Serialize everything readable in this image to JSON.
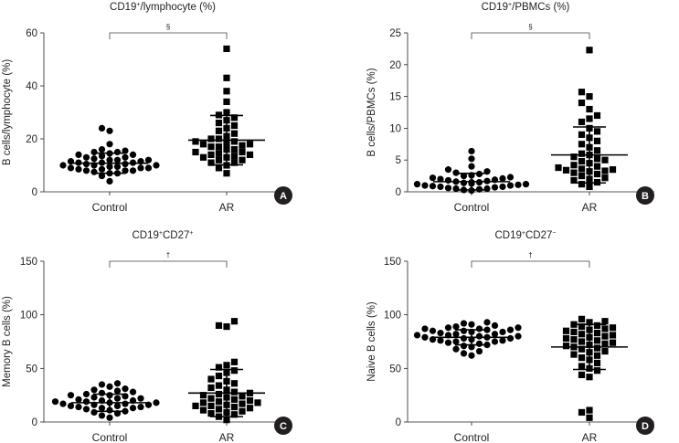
{
  "chart_data": [
    {
      "type": "scatter",
      "panel_label": "A",
      "title": "CD19+/lymphocyte (%)",
      "title_parts": {
        "base": "CD19",
        "sup": "+",
        "rest": "/lymphocyte (%)"
      },
      "ylabel": "B cells/lymphocyte (%)",
      "xlabel": "",
      "ylim": [
        0,
        60
      ],
      "yticks": [
        0,
        20,
        40,
        60
      ],
      "categories": [
        "Control",
        "AR"
      ],
      "significance": "§",
      "series": [
        {
          "name": "Control",
          "marker": "circle",
          "mean": 10.8,
          "sd": 3.8,
          "values": [
            4,
            6,
            7,
            7,
            7.5,
            8,
            8,
            8,
            8.5,
            8.5,
            9,
            9,
            9,
            9.5,
            9.5,
            10,
            10,
            10,
            10.5,
            10.5,
            11,
            11,
            11,
            11.5,
            11.5,
            12,
            12,
            12,
            12.5,
            13,
            13,
            13.5,
            14,
            14,
            14.5,
            15,
            15,
            15.5,
            16,
            18,
            23,
            24
          ]
        },
        {
          "name": "AR",
          "marker": "square",
          "mean": 19.5,
          "sd": 9.3,
          "values": [
            7,
            9,
            10,
            11,
            11,
            12,
            12,
            13,
            13,
            13.5,
            14,
            14,
            14.5,
            15,
            15,
            16,
            16,
            17,
            17,
            17.5,
            18,
            18,
            18.5,
            19,
            19,
            20,
            20,
            21,
            22,
            23,
            24,
            25,
            26,
            27,
            28,
            29,
            30,
            34,
            38,
            43,
            54
          ]
        }
      ]
    },
    {
      "type": "scatter",
      "panel_label": "B",
      "title": "CD19+/PBMCs (%)",
      "title_parts": {
        "base": "CD19",
        "sup": "+",
        "rest": "/PBMCs (%)"
      },
      "ylabel": "B cells/PBMCs (%)",
      "xlabel": "",
      "ylim": [
        0,
        25
      ],
      "yticks": [
        0,
        5,
        10,
        15,
        20,
        25
      ],
      "categories": [
        "Control",
        "AR"
      ],
      "significance": "§",
      "series": [
        {
          "name": "Control",
          "marker": "circle",
          "mean": 1.6,
          "sd": 1.3,
          "values": [
            0.2,
            0.3,
            0.4,
            0.5,
            0.5,
            0.6,
            0.7,
            0.8,
            0.8,
            0.9,
            1,
            1,
            1.1,
            1.2,
            1.2,
            1.3,
            1.4,
            1.5,
            1.5,
            1.6,
            1.7,
            1.8,
            1.9,
            2,
            2.1,
            2.2,
            2.3,
            2.5,
            2.6,
            2.8,
            3,
            3.2,
            3.5,
            4,
            5.2,
            6.4
          ]
        },
        {
          "name": "AR",
          "marker": "square",
          "mean": 5.8,
          "sd": 4.4,
          "values": [
            0.8,
            1.2,
            1.5,
            1.8,
            2,
            2.2,
            2.5,
            2.8,
            3,
            3.2,
            3.3,
            3.4,
            3.5,
            3.6,
            3.8,
            4,
            4.2,
            4.5,
            4.8,
            5,
            5.2,
            5.5,
            5.8,
            6,
            6.5,
            7,
            7.5,
            8,
            8.5,
            9,
            9.5,
            10,
            11,
            11.5,
            12,
            13,
            14,
            15,
            15.7,
            22.3
          ]
        }
      ]
    },
    {
      "type": "scatter",
      "panel_label": "C",
      "title": "CD19+CD27+",
      "title_parts": {
        "base": "CD19",
        "sup": "+",
        "rest": "CD27",
        "sup2": "+"
      },
      "ylabel": "Memory B cells (%)",
      "xlabel": "",
      "ylim": [
        0,
        150
      ],
      "yticks": [
        0,
        50,
        100,
        150
      ],
      "categories": [
        "Control",
        "AR"
      ],
      "significance": "†",
      "series": [
        {
          "name": "Control",
          "marker": "circle",
          "mean": 18,
          "sd": 8,
          "values": [
            4,
            6,
            8,
            9,
            10,
            11,
            12,
            13,
            13,
            14,
            14,
            15,
            15,
            16,
            16,
            17,
            17,
            18,
            18,
            19,
            19,
            20,
            20,
            21,
            22,
            22,
            23,
            24,
            25,
            25,
            26,
            27,
            28,
            29,
            30,
            31,
            33,
            35,
            36
          ]
        },
        {
          "name": "AR",
          "marker": "square",
          "mean": 27,
          "sd": 22,
          "values": [
            2,
            5,
            7,
            8,
            9,
            10,
            11,
            12,
            13,
            14,
            15,
            15,
            16,
            17,
            18,
            18,
            19,
            20,
            21,
            22,
            23,
            24,
            25,
            26,
            27,
            28,
            30,
            32,
            34,
            36,
            38,
            40,
            43,
            46,
            48,
            51,
            53,
            56,
            89,
            90,
            94
          ]
        }
      ]
    },
    {
      "type": "scatter",
      "panel_label": "D",
      "title": "CD19+CD27−",
      "title_parts": {
        "base": "CD19",
        "sup": "+",
        "rest": "CD27",
        "sup2": "−"
      },
      "ylabel": "Naive B cells (%)",
      "xlabel": "",
      "ylim": [
        0,
        150
      ],
      "yticks": [
        0,
        50,
        100,
        150
      ],
      "categories": [
        "Control",
        "AR"
      ],
      "significance": "†",
      "series": [
        {
          "name": "Control",
          "marker": "circle",
          "mean": 79,
          "sd": 7,
          "values": [
            62,
            64,
            66,
            68,
            70,
            71,
            72,
            73,
            74,
            75,
            75,
            76,
            76,
            77,
            77,
            78,
            78,
            79,
            79,
            80,
            80,
            81,
            81,
            82,
            82,
            83,
            84,
            84,
            85,
            85,
            86,
            86,
            87,
            87,
            88,
            88,
            89,
            90,
            91,
            92,
            93
          ]
        },
        {
          "name": "AR",
          "marker": "square",
          "mean": 70,
          "sd": 21,
          "values": [
            4,
            9,
            11,
            42,
            44,
            48,
            50,
            52,
            55,
            58,
            60,
            62,
            63,
            65,
            66,
            68,
            69,
            70,
            71,
            72,
            73,
            74,
            75,
            76,
            77,
            78,
            79,
            80,
            81,
            82,
            83,
            84,
            85,
            86,
            87,
            88,
            89,
            90,
            91,
            93,
            94,
            96
          ]
        }
      ]
    }
  ]
}
